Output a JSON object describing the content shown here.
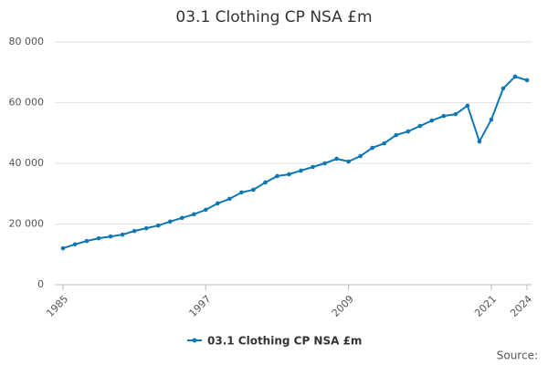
{
  "chart_data": {
    "type": "line",
    "title": "03.1 Clothing CP NSA £m",
    "x": [
      1985,
      1986,
      1987,
      1988,
      1989,
      1990,
      1991,
      1992,
      1993,
      1994,
      1995,
      1996,
      1997,
      1998,
      1999,
      2000,
      2001,
      2002,
      2003,
      2004,
      2005,
      2006,
      2007,
      2008,
      2009,
      2010,
      2011,
      2012,
      2013,
      2014,
      2015,
      2016,
      2017,
      2018,
      2019,
      2020,
      2021,
      2022,
      2023,
      2024
    ],
    "series": [
      {
        "name": "03.1 Clothing CP NSA £m",
        "color": "#0e76b4",
        "values": [
          12000,
          13300,
          14400,
          15300,
          15900,
          16500,
          17700,
          18600,
          19500,
          20800,
          22000,
          23200,
          24700,
          26800,
          28300,
          30400,
          31300,
          33700,
          35800,
          36400,
          37600,
          38800,
          40000,
          41500,
          40600,
          42400,
          45100,
          46600,
          49300,
          50500,
          52300,
          54100,
          55600,
          56200,
          59000,
          47200,
          54400,
          64700,
          68600,
          67400
        ]
      }
    ],
    "xlim": [
      1985,
      2024
    ],
    "xticks": [
      1985,
      1997,
      2009,
      2021,
      2024
    ],
    "ylim": [
      0,
      80000
    ],
    "yticks": [
      0,
      {
        "value": 20000,
        "label": "20 000"
      },
      {
        "value": 40000,
        "label": "40 000"
      },
      {
        "value": 60000,
        "label": "60 000"
      },
      {
        "value": 80000,
        "label": "80 000"
      }
    ],
    "grid": true,
    "legend": "bottom",
    "source": "Source:"
  }
}
